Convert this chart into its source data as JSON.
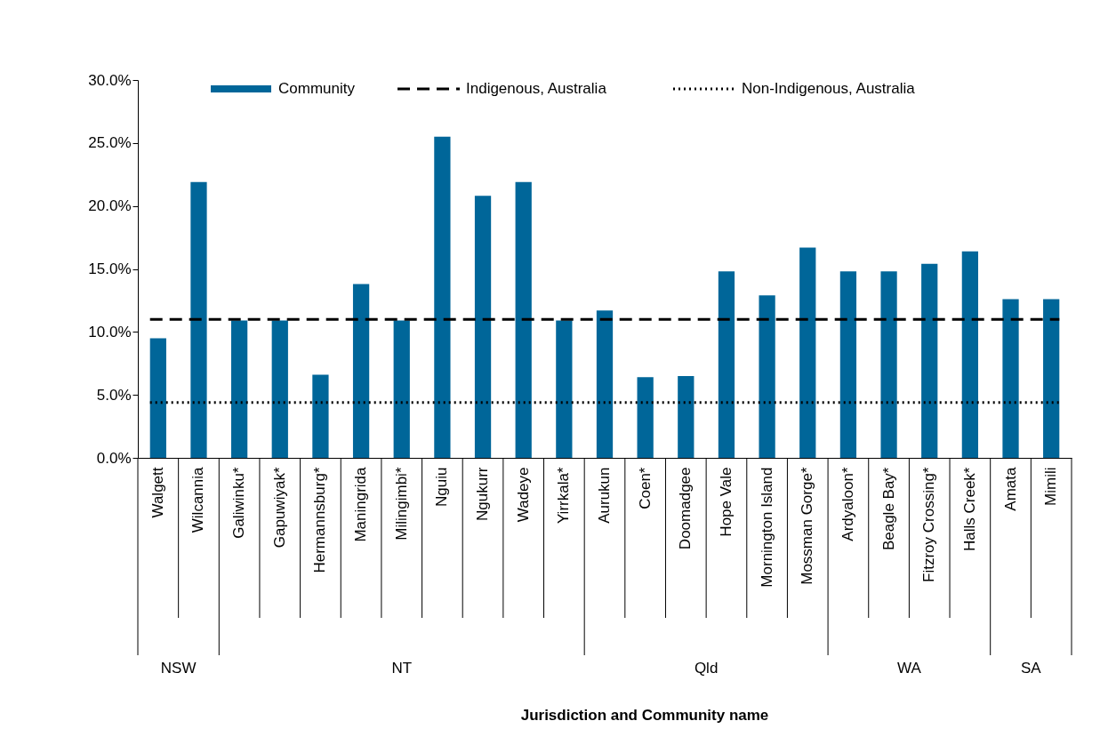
{
  "chart_data": {
    "type": "bar",
    "annotations": [
      "NSW",
      "NT",
      "Qld",
      "WA",
      "SA",
      "Jurisdiction and Community name"
    ],
    "categories": [
      "Walgett",
      "Wilcannia",
      "Galiwinku*",
      "Gapuwiyak*",
      "Hermannsburg*",
      "Maningrida",
      "Milingimbi*",
      "Nguiu",
      "Ngukurr",
      "Wadeye",
      "Yirrkala*",
      "Aurukun",
      "Coen*",
      "Doomadgee",
      "Hope Vale",
      "Mornington Island",
      "Mossman Gorge*",
      "Ardyaloon*",
      "Beagle Bay*",
      "Fitzroy Crossing*",
      "Halls Creek*",
      "Amata",
      "Mimili"
    ],
    "series": [
      {
        "name": "Community",
        "color": "#006699",
        "values": [
          9.5,
          21.9,
          10.9,
          10.9,
          6.6,
          13.8,
          10.9,
          25.5,
          20.8,
          21.9,
          10.9,
          11.7,
          6.4,
          6.5,
          14.8,
          12.9,
          16.7,
          14.8,
          14.8,
          15.4,
          16.4,
          12.6,
          12.6
        ]
      }
    ],
    "ylim": [
      0,
      30
    ],
    "yticks": [
      {
        "value": 0,
        "label": "0.0%"
      },
      {
        "value": 5,
        "label": "5.0%"
      },
      {
        "value": 10,
        "label": "10.0%"
      },
      {
        "value": 15,
        "label": "15.0%"
      },
      {
        "value": 20,
        "label": "20.0%"
      },
      {
        "value": 25,
        "label": "25.0%"
      },
      {
        "value": 30,
        "label": "30.0%"
      }
    ],
    "ref_lines": [
      {
        "axis": "y",
        "value": 11.0,
        "label": "Indigenous, Australia",
        "color": "#000000",
        "line_style": "dashed"
      },
      {
        "axis": "y",
        "value": 4.4,
        "label": "Non-Indigenous, Australia",
        "color": "#000000",
        "line_style": "dotted"
      }
    ],
    "grid": false,
    "legend": "top"
  }
}
